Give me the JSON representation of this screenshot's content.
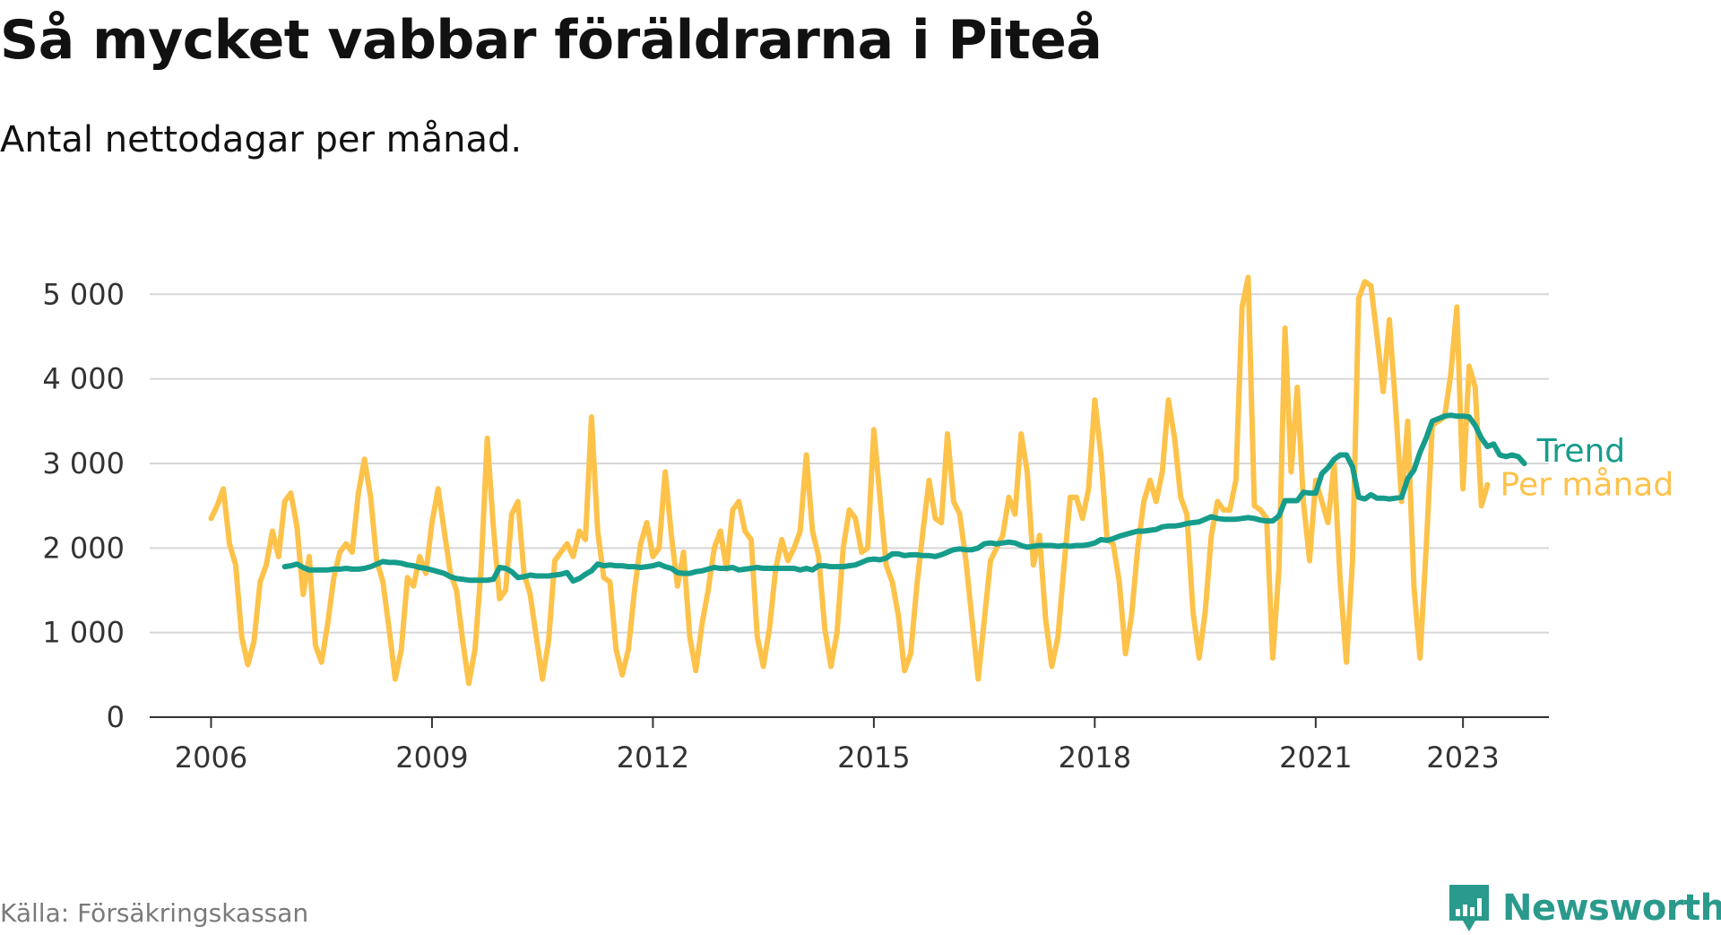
{
  "title": "Så mycket vabbar föräldrarna i Piteå",
  "subtitle": "Antal nettodagar per månad.",
  "source": "Källa: Försäkringskassan",
  "brand": {
    "name": "Newsworthy",
    "icon": "newsworthy-logo-icon",
    "color": "#2a9a8c"
  },
  "chart_data": {
    "type": "line",
    "x_ticks": [
      "2006",
      "2009",
      "2012",
      "2015",
      "2018",
      "2021",
      "2023"
    ],
    "y_ticks": [
      "0",
      "1 000",
      "2 000",
      "3 000",
      "4 000",
      "5 000"
    ],
    "ylim": [
      0,
      5300
    ],
    "xlim": [
      "2005-03",
      "2024-03"
    ],
    "grid": true,
    "legend": "inline-right",
    "series": [
      {
        "name": "Per månad",
        "color": "#fdc24a",
        "x_start": "2006-01",
        "step": "month",
        "values": [
          2350,
          2500,
          2700,
          2050,
          1800,
          950,
          620,
          900,
          1600,
          1800,
          2200,
          1900,
          2550,
          2650,
          2250,
          1450,
          1900,
          850,
          650,
          1100,
          1650,
          1950,
          2050,
          1950,
          2650,
          3050,
          2600,
          1850,
          1600,
          1050,
          450,
          800,
          1650,
          1550,
          1900,
          1700,
          2300,
          2700,
          2200,
          1700,
          1500,
          900,
          400,
          800,
          1750,
          3300,
          2250,
          1400,
          1500,
          2400,
          2550,
          1700,
          1450,
          950,
          450,
          900,
          1850,
          1950,
          2050,
          1900,
          2200,
          2100,
          3550,
          2200,
          1650,
          1600,
          800,
          500,
          800,
          1500,
          2050,
          2300,
          1900,
          2000,
          2900,
          2150,
          1550,
          1950,
          950,
          550,
          1100,
          1500,
          2000,
          2200,
          1750,
          2450,
          2550,
          2200,
          2100,
          950,
          600,
          1050,
          1750,
          2100,
          1850,
          2000,
          2200,
          3100,
          2200,
          1900,
          1050,
          600,
          1000,
          2000,
          2450,
          2350,
          1950,
          2000,
          3400,
          2600,
          1800,
          1600,
          1200,
          550,
          750,
          1550,
          2200,
          2800,
          2350,
          2300,
          3350,
          2550,
          2400,
          1850,
          1150,
          450,
          1150,
          1850,
          2000,
          2150,
          2600,
          2400,
          3350,
          2900,
          1800,
          2150,
          1150,
          600,
          950,
          1800,
          2600,
          2600,
          2350,
          2700,
          3750,
          3100,
          2100,
          2050,
          1600,
          750,
          1200,
          2000,
          2550,
          2800,
          2550,
          2900,
          3750,
          3300,
          2600,
          2400,
          1250,
          700,
          1250,
          2150,
          2550,
          2450,
          2450,
          2800,
          4850,
          5200,
          2500,
          2450,
          2350,
          700,
          1750,
          4600,
          2900,
          3900,
          2550,
          1850,
          2800,
          2550,
          2300,
          3000,
          1600,
          650,
          1850,
          4950,
          5150,
          5100,
          4500,
          3850,
          4700,
          3700,
          2550,
          3500,
          1550,
          700,
          2000,
          3450,
          3500,
          3550,
          4050,
          4850,
          2700,
          4150,
          3900,
          2500,
          2750
        ]
      },
      {
        "name": "Trend",
        "color": "#169c8b",
        "x_start": "2007-01",
        "step": "month",
        "values": [
          1780,
          1790,
          1810,
          1770,
          1740,
          1740,
          1740,
          1740,
          1750,
          1750,
          1760,
          1750,
          1750,
          1760,
          1780,
          1810,
          1840,
          1830,
          1830,
          1820,
          1800,
          1790,
          1770,
          1760,
          1740,
          1720,
          1700,
          1660,
          1640,
          1630,
          1620,
          1620,
          1620,
          1620,
          1630,
          1770,
          1760,
          1720,
          1650,
          1660,
          1680,
          1670,
          1670,
          1670,
          1680,
          1690,
          1710,
          1610,
          1640,
          1690,
          1730,
          1810,
          1790,
          1800,
          1790,
          1790,
          1780,
          1780,
          1770,
          1780,
          1790,
          1810,
          1780,
          1760,
          1710,
          1700,
          1700,
          1720,
          1730,
          1750,
          1770,
          1760,
          1760,
          1770,
          1740,
          1750,
          1760,
          1770,
          1760,
          1760,
          1760,
          1760,
          1760,
          1760,
          1740,
          1760,
          1740,
          1790,
          1790,
          1780,
          1780,
          1780,
          1790,
          1800,
          1830,
          1860,
          1870,
          1860,
          1880,
          1930,
          1930,
          1910,
          1920,
          1920,
          1910,
          1910,
          1900,
          1920,
          1950,
          1980,
          1990,
          1980,
          1980,
          2000,
          2050,
          2060,
          2050,
          2060,
          2070,
          2060,
          2030,
          2010,
          2020,
          2030,
          2030,
          2030,
          2020,
          2030,
          2020,
          2030,
          2030,
          2040,
          2060,
          2100,
          2090,
          2110,
          2140,
          2160,
          2180,
          2200,
          2200,
          2210,
          2220,
          2250,
          2260,
          2260,
          2270,
          2290,
          2300,
          2310,
          2340,
          2370,
          2350,
          2340,
          2340,
          2340,
          2350,
          2360,
          2350,
          2330,
          2320,
          2320,
          2380,
          2560,
          2560,
          2560,
          2660,
          2650,
          2650,
          2880,
          2950,
          3050,
          3100,
          3100,
          2960,
          2600,
          2580,
          2630,
          2590,
          2590,
          2580,
          2590,
          2600,
          2820,
          2920,
          3130,
          3300,
          3500,
          3530,
          3560,
          3570,
          3560,
          3560,
          3550,
          3450,
          3300,
          3200,
          3230,
          3100,
          3080,
          3100,
          3080,
          3000
        ]
      }
    ]
  }
}
